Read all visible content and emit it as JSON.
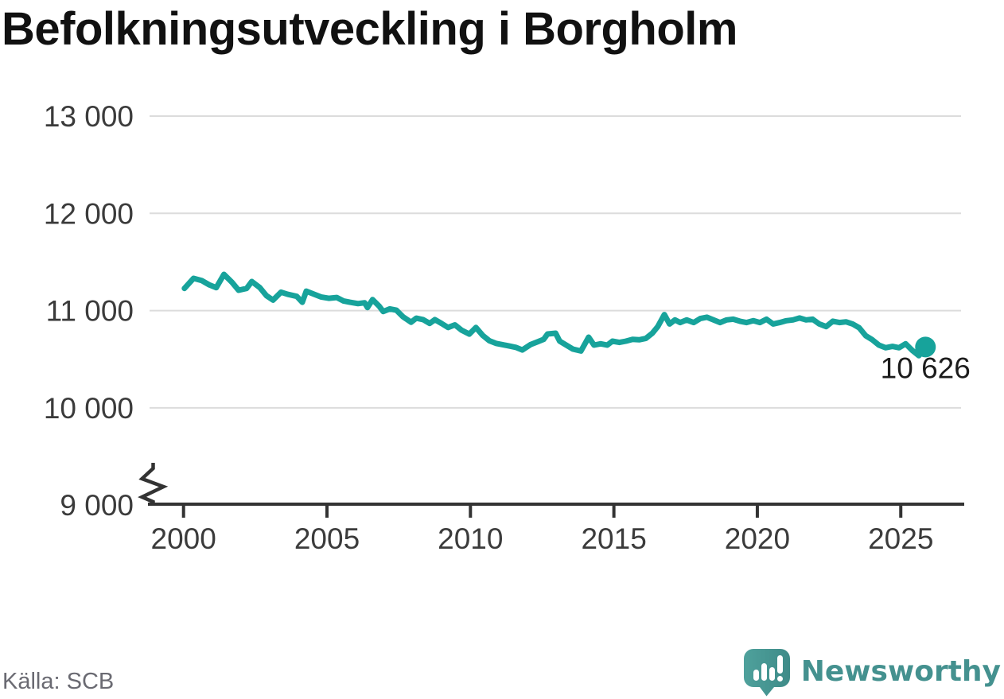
{
  "title": "Befolkningsutveckling i Borgholm",
  "source": "Källa: SCB",
  "brand": {
    "name": "Newsworthy"
  },
  "colors": {
    "line": "#17a39b",
    "grid": "#dcdcdc",
    "axis": "#333333",
    "tick_label": "#3b3b3b",
    "title_text": "#111111",
    "source_text": "#6a6a72",
    "annotation": "#1c1c1c",
    "brand_icon_light": "#4fa19c",
    "brand_icon_dark": "#3e8b88",
    "brand_text": "#44918f"
  },
  "chart_data": {
    "type": "line",
    "title": "Befolkningsutveckling i Borgholm",
    "xlabel": "",
    "ylabel": "",
    "grid": "horizontal",
    "y_axis_break": true,
    "x_range": [
      2000,
      2027
    ],
    "ylim_displayed": [
      9000,
      13000
    ],
    "x_ticks": [
      2000,
      2005,
      2010,
      2015,
      2020,
      2025
    ],
    "y_ticks": [
      {
        "value": 13000,
        "label": "13 000"
      },
      {
        "value": 12000,
        "label": "12 000"
      },
      {
        "value": 11000,
        "label": "11 000"
      },
      {
        "value": 10000,
        "label": "10 000"
      },
      {
        "value": 9000,
        "label": "9 000"
      }
    ],
    "end_annotation": {
      "label": "10 626",
      "x": 2025.86,
      "value": 10626
    },
    "series": [
      {
        "name": "Befolkning",
        "color": "#17a39b",
        "points": [
          [
            2000.03,
            11228
          ],
          [
            2000.35,
            11332
          ],
          [
            2000.63,
            11310
          ],
          [
            2000.9,
            11264
          ],
          [
            2001.14,
            11236
          ],
          [
            2001.41,
            11373
          ],
          [
            2001.69,
            11291
          ],
          [
            2001.92,
            11209
          ],
          [
            2002.2,
            11228
          ],
          [
            2002.38,
            11299
          ],
          [
            2002.66,
            11236
          ],
          [
            2002.89,
            11154
          ],
          [
            2003.12,
            11108
          ],
          [
            2003.4,
            11190
          ],
          [
            2003.63,
            11168
          ],
          [
            2003.95,
            11146
          ],
          [
            2004.14,
            11086
          ],
          [
            2004.28,
            11200
          ],
          [
            2004.56,
            11168
          ],
          [
            2004.79,
            11141
          ],
          [
            2005.06,
            11127
          ],
          [
            2005.34,
            11135
          ],
          [
            2005.57,
            11100
          ],
          [
            2005.8,
            11086
          ],
          [
            2006.08,
            11072
          ],
          [
            2006.31,
            11081
          ],
          [
            2006.41,
            11032
          ],
          [
            2006.59,
            11114
          ],
          [
            2006.82,
            11046
          ],
          [
            2006.96,
            10991
          ],
          [
            2007.19,
            11018
          ],
          [
            2007.42,
            11004
          ],
          [
            2007.65,
            10936
          ],
          [
            2007.93,
            10881
          ],
          [
            2008.11,
            10922
          ],
          [
            2008.35,
            10908
          ],
          [
            2008.58,
            10868
          ],
          [
            2008.76,
            10908
          ],
          [
            2008.99,
            10868
          ],
          [
            2009.22,
            10827
          ],
          [
            2009.46,
            10854
          ],
          [
            2009.69,
            10800
          ],
          [
            2009.96,
            10759
          ],
          [
            2010.19,
            10827
          ],
          [
            2010.43,
            10745
          ],
          [
            2010.66,
            10690
          ],
          [
            2010.89,
            10663
          ],
          [
            2011.12,
            10650
          ],
          [
            2011.35,
            10636
          ],
          [
            2011.58,
            10622
          ],
          [
            2011.81,
            10595
          ],
          [
            2012.09,
            10650
          ],
          [
            2012.32,
            10677
          ],
          [
            2012.55,
            10704
          ],
          [
            2012.69,
            10760
          ],
          [
            2012.97,
            10768
          ],
          [
            2013.11,
            10686
          ],
          [
            2013.34,
            10645
          ],
          [
            2013.57,
            10604
          ],
          [
            2013.85,
            10585
          ],
          [
            2014.12,
            10727
          ],
          [
            2014.31,
            10645
          ],
          [
            2014.54,
            10659
          ],
          [
            2014.77,
            10645
          ],
          [
            2014.95,
            10686
          ],
          [
            2015.19,
            10673
          ],
          [
            2015.42,
            10686
          ],
          [
            2015.65,
            10705
          ],
          [
            2015.88,
            10700
          ],
          [
            2016.11,
            10714
          ],
          [
            2016.34,
            10768
          ],
          [
            2016.53,
            10836
          ],
          [
            2016.76,
            10959
          ],
          [
            2016.94,
            10863
          ],
          [
            2017.13,
            10904
          ],
          [
            2017.31,
            10877
          ],
          [
            2017.54,
            10904
          ],
          [
            2017.78,
            10877
          ],
          [
            2018.01,
            10918
          ],
          [
            2018.24,
            10932
          ],
          [
            2018.47,
            10904
          ],
          [
            2018.7,
            10877
          ],
          [
            2018.93,
            10904
          ],
          [
            2019.16,
            10912
          ],
          [
            2019.39,
            10891
          ],
          [
            2019.62,
            10877
          ],
          [
            2019.86,
            10896
          ],
          [
            2020.09,
            10877
          ],
          [
            2020.32,
            10912
          ],
          [
            2020.55,
            10863
          ],
          [
            2020.78,
            10877
          ],
          [
            2021.01,
            10896
          ],
          [
            2021.24,
            10904
          ],
          [
            2021.47,
            10924
          ],
          [
            2021.7,
            10904
          ],
          [
            2021.93,
            10912
          ],
          [
            2022.16,
            10863
          ],
          [
            2022.4,
            10836
          ],
          [
            2022.63,
            10891
          ],
          [
            2022.86,
            10877
          ],
          [
            2023.09,
            10885
          ],
          [
            2023.32,
            10863
          ],
          [
            2023.55,
            10823
          ],
          [
            2023.78,
            10741
          ],
          [
            2024.01,
            10700
          ],
          [
            2024.24,
            10645
          ],
          [
            2024.47,
            10618
          ],
          [
            2024.71,
            10632
          ],
          [
            2024.94,
            10618
          ],
          [
            2025.17,
            10659
          ],
          [
            2025.4,
            10591
          ],
          [
            2025.63,
            10536
          ],
          [
            2025.86,
            10626
          ]
        ]
      }
    ]
  }
}
